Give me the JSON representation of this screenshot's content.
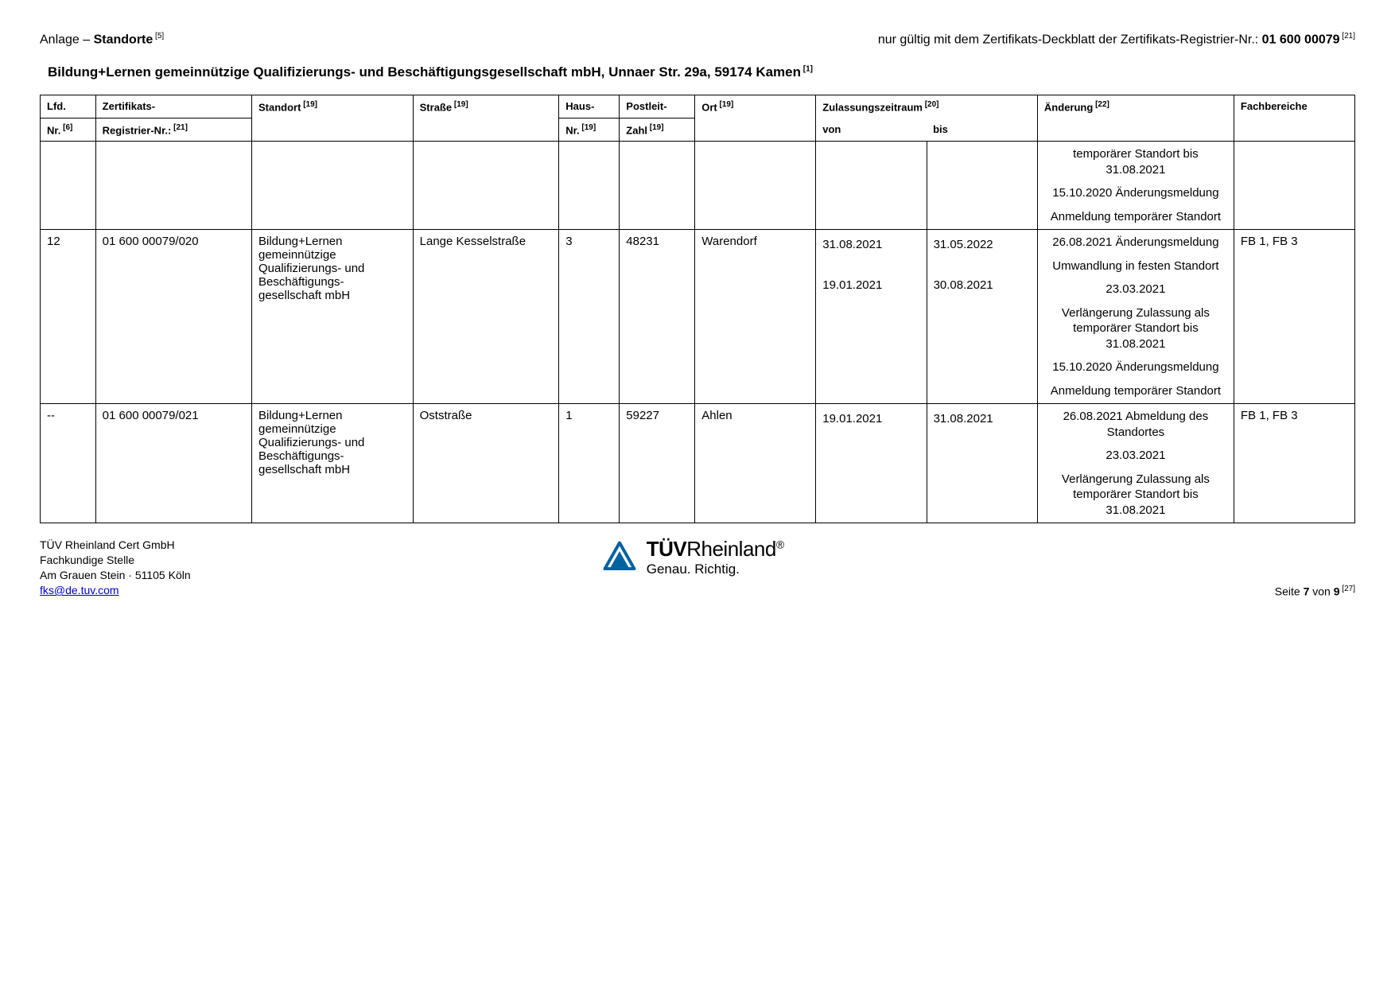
{
  "header": {
    "left_prefix": "Anlage –  ",
    "left_bold": "Standorte",
    "left_sup": " [5]",
    "right_text": "nur gültig mit dem Zertifikats-Deckblatt der Zertifikats-Registrier-Nr.:  ",
    "right_bold": "01 600 00079",
    "right_sup": " [21]"
  },
  "subtitle": {
    "text": "Bildung+Lernen gemeinnützige Qualifizierungs- und Beschäftigungsgesellschaft mbH, Unnaer Str. 29a, 59174 Kamen",
    "sup": " [1]"
  },
  "columns": {
    "lfd_l1": "Lfd.",
    "lfd_l2": "Nr.",
    "lfd_sup": " [6]",
    "reg_l1": "Zertifikats-",
    "reg_l2": "Registrier-Nr.:",
    "reg_sup": " [21]",
    "stand": "Standort",
    "stand_sup": " [19]",
    "str": "Straße",
    "str_sup": " [19]",
    "haus_l1": "Haus-",
    "haus_l2": "Nr.",
    "haus_sup": " [19]",
    "plz_l1": "Postleit-",
    "plz_l2": "Zahl",
    "plz_sup": " [19]",
    "ort": "Ort",
    "ort_sup": " [19]",
    "zeit": "Zulassungszeitraum",
    "zeit_sup": " [20]",
    "von": "von",
    "bis": "bis",
    "aend": "Änderung",
    "aend_sup": " [22]",
    "fb": "Fachbereiche"
  },
  "rows": [
    {
      "lfd": "",
      "reg": "",
      "stand": "",
      "str": "",
      "haus": "",
      "plz": "",
      "ort": "",
      "von": "",
      "bis": "",
      "aend": [
        "temporärer Standort bis 31.08.2021",
        "15.10.2020 Änderungsmeldung",
        "Anmeldung temporärer Standort"
      ],
      "fb": ""
    },
    {
      "lfd": "12",
      "reg": "01 600 00079/020",
      "stand": "Bildung+Lernen gemeinnützige Qualifizierungs- und Beschäftigungs-gesellschaft mbH",
      "str": "Lange Kesselstraße",
      "haus": "3",
      "plz": "48231",
      "ort": "Warendorf",
      "von": "31.08.2021\n\n19.01.2021",
      "bis": "31.05.2022\n\n30.08.2021",
      "aend": [
        "26.08.2021 Änderungsmeldung",
        "Umwandlung in festen Standort",
        "23.03.2021",
        "Verlängerung Zulassung als temporärer Standort bis 31.08.2021",
        "15.10.2020 Änderungsmeldung",
        "Anmeldung temporärer Standort"
      ],
      "fb": "FB 1, FB 3"
    },
    {
      "lfd": "--",
      "reg": "01 600 00079/021",
      "stand": "Bildung+Lernen gemeinnützige Qualifizierungs- und Beschäftigungs-gesellschaft mbH",
      "str": "Oststraße",
      "haus": "1",
      "plz": "59227",
      "ort": "Ahlen",
      "von": "19.01.2021",
      "bis": "31.08.2021",
      "aend": [
        "26.08.2021 Abmeldung des Standortes",
        "23.03.2021",
        "Verlängerung Zulassung als temporärer Standort bis 31.08.2021"
      ],
      "fb": "FB 1, FB 3"
    }
  ],
  "footer": {
    "company": "TÜV Rheinland Cert GmbH",
    "dept": "Fachkundige Stelle",
    "addr": "Am Grauen Stein · 51105 Köln",
    "email": "fks@de.tuv.com",
    "brand_pre": "TÜV",
    "brand_post": "Rheinland",
    "brand_reg": "®",
    "tagline": "Genau. Richtig.",
    "page_pre": "Seite ",
    "page_cur": "7",
    "page_mid": " von ",
    "page_tot": "9",
    "page_sup": " [27]"
  },
  "colors": {
    "link": "#0000cc",
    "logo": "#0061a1"
  }
}
